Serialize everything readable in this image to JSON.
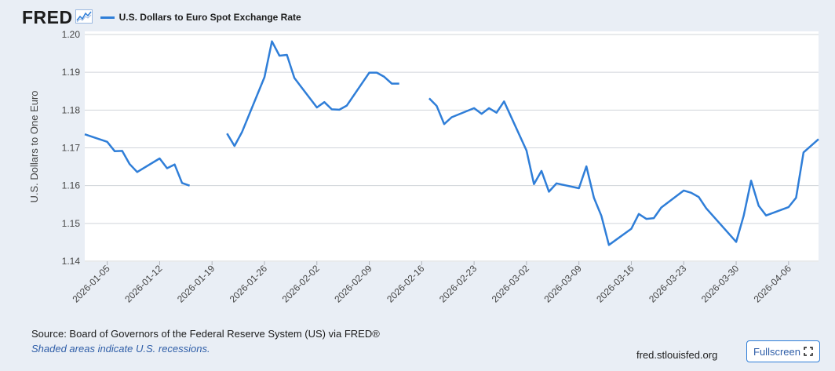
{
  "header": {
    "logo_text": "FRED",
    "logo_icon": "line-graph-icon",
    "series_label": "U.S. Dollars to Euro Spot Exchange Rate",
    "series_color": "#2f7ed8"
  },
  "footer": {
    "source": "Source: Board of Governors of the Federal Reserve System (US) via FRED®",
    "recession_note": "Shaded areas indicate U.S. recessions.",
    "url": "fred.stlouisfed.org",
    "fullscreen_label": "Fullscreen",
    "fullscreen_icon": "expand-icon"
  },
  "chart_data": {
    "type": "line",
    "title": "",
    "ylabel": "U.S. Dollars to One Euro",
    "xlabel": "",
    "ylim": [
      1.14,
      1.2
    ],
    "yticks": [
      "1.14",
      "1.15",
      "1.16",
      "1.17",
      "1.18",
      "1.19",
      "1.20"
    ],
    "xticks": [
      "2026-01-05",
      "2026-01-12",
      "2026-01-19",
      "2026-01-26",
      "2026-02-02",
      "2026-02-09",
      "2026-02-16",
      "2026-02-23",
      "2026-03-02",
      "2026-03-09",
      "2026-03-16",
      "2026-03-23",
      "2026-03-30",
      "2026-04-06"
    ],
    "x_range": [
      "2026-01-02",
      "2026-04-10"
    ],
    "grid": "horizontal",
    "series": [
      {
        "name": "U.S. Dollars to Euro Spot Exchange Rate",
        "color": "#2f7ed8",
        "points": [
          [
            "2026-01-02",
            1.1736
          ],
          [
            "2026-01-05",
            1.1716
          ],
          [
            "2026-01-06",
            1.1691
          ],
          [
            "2026-01-07",
            1.1692
          ],
          [
            "2026-01-08",
            1.1657
          ],
          [
            "2026-01-09",
            1.1636
          ],
          [
            "2026-01-12",
            1.1672
          ],
          [
            "2026-01-13",
            1.1646
          ],
          [
            "2026-01-14",
            1.1656
          ],
          [
            "2026-01-15",
            1.1607
          ],
          [
            "2026-01-16",
            1.16
          ],
          [
            "2026-01-20",
            null
          ],
          [
            "2026-01-21",
            1.1738
          ],
          [
            "2026-01-22",
            1.1705
          ],
          [
            "2026-01-23",
            1.1742
          ],
          [
            "2026-01-26",
            1.1887
          ],
          [
            "2026-01-27",
            1.1982
          ],
          [
            "2026-01-28",
            1.1944
          ],
          [
            "2026-01-29",
            1.1946
          ],
          [
            "2026-01-30",
            1.1885
          ],
          [
            "2026-02-02",
            1.1807
          ],
          [
            "2026-02-03",
            1.1821
          ],
          [
            "2026-02-04",
            1.1802
          ],
          [
            "2026-02-05",
            1.1801
          ],
          [
            "2026-02-06",
            1.1812
          ],
          [
            "2026-02-09",
            1.1899
          ],
          [
            "2026-02-10",
            1.1899
          ],
          [
            "2026-02-11",
            1.1888
          ],
          [
            "2026-02-12",
            1.187
          ],
          [
            "2026-02-13",
            1.187
          ],
          [
            "2026-02-16",
            null
          ],
          [
            "2026-02-17",
            1.1831
          ],
          [
            "2026-02-18",
            1.1811
          ],
          [
            "2026-02-19",
            1.1763
          ],
          [
            "2026-02-20",
            1.1781
          ],
          [
            "2026-02-23",
            1.1805
          ],
          [
            "2026-02-24",
            1.179
          ],
          [
            "2026-02-25",
            1.1805
          ],
          [
            "2026-02-26",
            1.1793
          ],
          [
            "2026-02-27",
            1.1823
          ],
          [
            "2026-03-02",
            1.1693
          ],
          [
            "2026-03-03",
            1.1604
          ],
          [
            "2026-03-04",
            1.1639
          ],
          [
            "2026-03-05",
            1.1584
          ],
          [
            "2026-03-06",
            1.1606
          ],
          [
            "2026-03-09",
            1.1593
          ],
          [
            "2026-03-10",
            1.1651
          ],
          [
            "2026-03-11",
            1.1568
          ],
          [
            "2026-03-12",
            1.152
          ],
          [
            "2026-03-13",
            1.1443
          ],
          [
            "2026-03-16",
            1.1486
          ],
          [
            "2026-03-17",
            1.1525
          ],
          [
            "2026-03-18",
            1.1512
          ],
          [
            "2026-03-19",
            1.1514
          ],
          [
            "2026-03-20",
            1.1542
          ],
          [
            "2026-03-23",
            1.1587
          ],
          [
            "2026-03-24",
            1.1581
          ],
          [
            "2026-03-25",
            1.157
          ],
          [
            "2026-03-26",
            1.154
          ],
          [
            "2026-03-30",
            1.1451
          ],
          [
            "2026-03-31",
            1.152
          ],
          [
            "2026-04-01",
            1.1613
          ],
          [
            "2026-04-02",
            1.1547
          ],
          [
            "2026-04-03",
            1.1521
          ],
          [
            "2026-04-06",
            1.1543
          ],
          [
            "2026-04-07",
            1.1568
          ],
          [
            "2026-04-08",
            1.1688
          ],
          [
            "2026-04-10",
            1.1723
          ]
        ]
      }
    ]
  }
}
